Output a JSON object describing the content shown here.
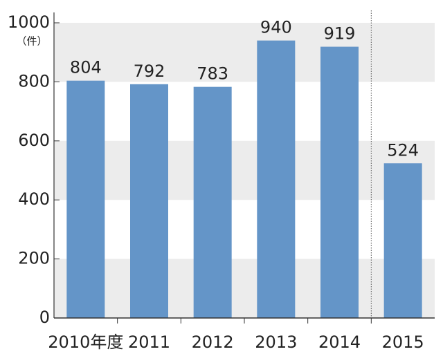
{
  "chart_data": {
    "type": "bar",
    "y_unit": "（件）",
    "categories": [
      "2010年度",
      "2011",
      "2012",
      "2013",
      "2014",
      "2015"
    ],
    "values": [
      804,
      792,
      783,
      940,
      919,
      524
    ],
    "color": "#6495c8",
    "ylim": [
      0,
      1000
    ],
    "yticks": [
      0,
      200,
      400,
      600,
      800,
      1000
    ],
    "grid": true
  }
}
